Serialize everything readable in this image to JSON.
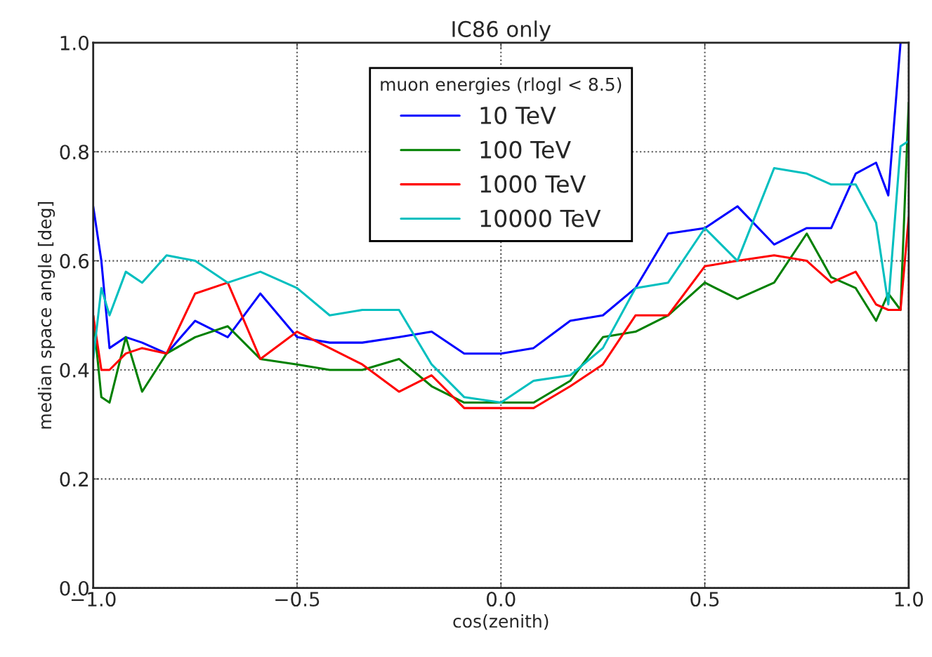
{
  "chart_data": {
    "type": "line",
    "title": "IC86 only",
    "xlabel": "cos(zenith)",
    "ylabel": "median space angle [deg]",
    "legend_title": "muon energies (rlogl < 8.5)",
    "x": [
      -1.0,
      -0.98,
      -0.96,
      -0.92,
      -0.88,
      -0.82,
      -0.75,
      -0.67,
      -0.59,
      -0.5,
      -0.42,
      -0.34,
      -0.25,
      -0.17,
      -0.09,
      0.0,
      0.08,
      0.17,
      0.25,
      0.33,
      0.41,
      0.5,
      0.58,
      0.67,
      0.75,
      0.81,
      0.87,
      0.92,
      0.95,
      0.98,
      1.0
    ],
    "series": [
      {
        "name": "10 TeV",
        "color": "#0000ff",
        "values": [
          0.7,
          0.6,
          0.44,
          0.46,
          0.45,
          0.43,
          0.49,
          0.46,
          0.54,
          0.46,
          0.45,
          0.45,
          0.46,
          0.47,
          0.43,
          0.43,
          0.44,
          0.49,
          0.5,
          0.55,
          0.65,
          0.66,
          0.7,
          0.63,
          0.66,
          0.66,
          0.76,
          0.78,
          0.72,
          1.0,
          null
        ]
      },
      {
        "name": "100 TeV",
        "color": "#008000",
        "values": [
          0.5,
          0.35,
          0.34,
          0.46,
          0.36,
          0.43,
          0.46,
          0.48,
          0.42,
          0.41,
          0.4,
          0.4,
          0.42,
          0.37,
          0.34,
          0.34,
          0.34,
          0.38,
          0.46,
          0.47,
          0.5,
          0.56,
          0.53,
          0.56,
          0.65,
          0.57,
          0.55,
          0.49,
          0.54,
          0.51,
          0.89
        ]
      },
      {
        "name": "1000 TeV",
        "color": "#ff0000",
        "values": [
          0.5,
          0.4,
          0.4,
          0.43,
          0.44,
          0.43,
          0.54,
          0.56,
          0.42,
          0.47,
          0.44,
          0.41,
          0.36,
          0.39,
          0.33,
          0.33,
          0.33,
          0.37,
          0.41,
          0.5,
          0.5,
          0.59,
          0.6,
          0.61,
          0.6,
          0.56,
          0.58,
          0.52,
          0.51,
          0.51,
          0.68
        ]
      },
      {
        "name": "10000 TeV",
        "color": "#00bfbf",
        "values": [
          0.42,
          0.55,
          0.5,
          0.58,
          0.56,
          0.61,
          0.6,
          0.56,
          0.58,
          0.55,
          0.5,
          0.51,
          0.51,
          0.41,
          0.35,
          0.34,
          0.38,
          0.39,
          0.44,
          0.55,
          0.56,
          0.66,
          0.6,
          0.77,
          0.76,
          0.74,
          0.74,
          0.67,
          0.52,
          0.81,
          0.82
        ]
      }
    ],
    "xlim": [
      -1.0,
      1.0
    ],
    "xticks": [
      {
        "value": -1.0,
        "label": "−1.0"
      },
      {
        "value": -0.5,
        "label": "−0.5"
      },
      {
        "value": 0.0,
        "label": "0.0"
      },
      {
        "value": 0.5,
        "label": "0.5"
      },
      {
        "value": 1.0,
        "label": "1.0"
      }
    ],
    "ylim": [
      0.0,
      1.0
    ],
    "yticks": [
      {
        "value": 0.0,
        "label": "0.0"
      },
      {
        "value": 0.2,
        "label": "0.2"
      },
      {
        "value": 0.4,
        "label": "0.4"
      },
      {
        "value": 0.6,
        "label": "0.6"
      },
      {
        "value": 0.8,
        "label": "0.8"
      },
      {
        "value": 1.0,
        "label": "1.0"
      }
    ],
    "grid": true,
    "legend": "top",
    "marker": "none",
    "line_style": "solid"
  }
}
